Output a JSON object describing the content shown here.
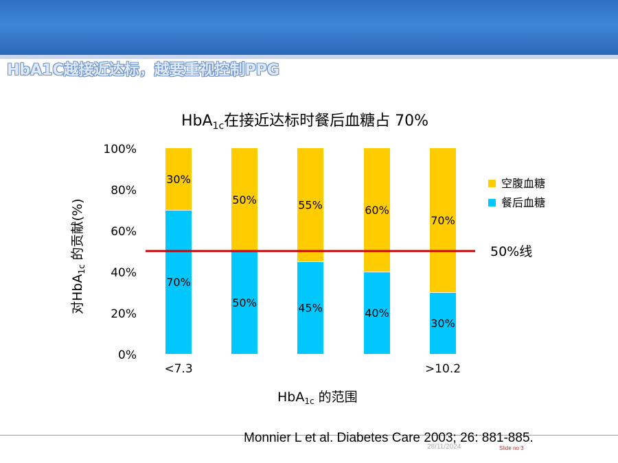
{
  "slide": {
    "title": "HbA1C越接近达标，越要重视控制PPG",
    "citation": "Monnier L et al.  Diabetes Care 2003; 26: 881-885.",
    "date": "28/11/2024",
    "slide_number": "Slide no 3"
  },
  "chart_data": {
    "type": "bar",
    "stacked": true,
    "title_main": "HbA",
    "title_sub": "1c",
    "title_rest": "在接近达标时餐后血糖占 70%",
    "ylabel_pre": "对HbA",
    "ylabel_sub": "1c",
    "ylabel_post": " 的贡献(%)",
    "xlabel_main": "HbA",
    "xlabel_sub": "1c",
    "xlabel_post": " 的范围",
    "categories": [
      "<7.3",
      "",
      "",
      "",
      ">10.2"
    ],
    "yticks": [
      "0%",
      "20%",
      "40%",
      "60%",
      "80%",
      "100%"
    ],
    "ylim": [
      0,
      100
    ],
    "series": [
      {
        "name": "餐后血糖",
        "color": "#00c8ff",
        "values": [
          70,
          50,
          45,
          40,
          30
        ],
        "labels": [
          "70%",
          "50%",
          "45%",
          "40%",
          "30%"
        ]
      },
      {
        "name": "空腹血糖",
        "color": "#ffcc00",
        "values": [
          30,
          50,
          55,
          60,
          70
        ],
        "labels": [
          "30%",
          "50%",
          "55%",
          "60%",
          "70%"
        ]
      }
    ],
    "legend_order": [
      "空腹血糖",
      "餐后血糖"
    ],
    "legend_colors": [
      "#ffcc00",
      "#00c8ff"
    ],
    "legend_position": "right",
    "reference_line": {
      "value": 50,
      "label": "50%线",
      "color": "#cc0000"
    }
  }
}
